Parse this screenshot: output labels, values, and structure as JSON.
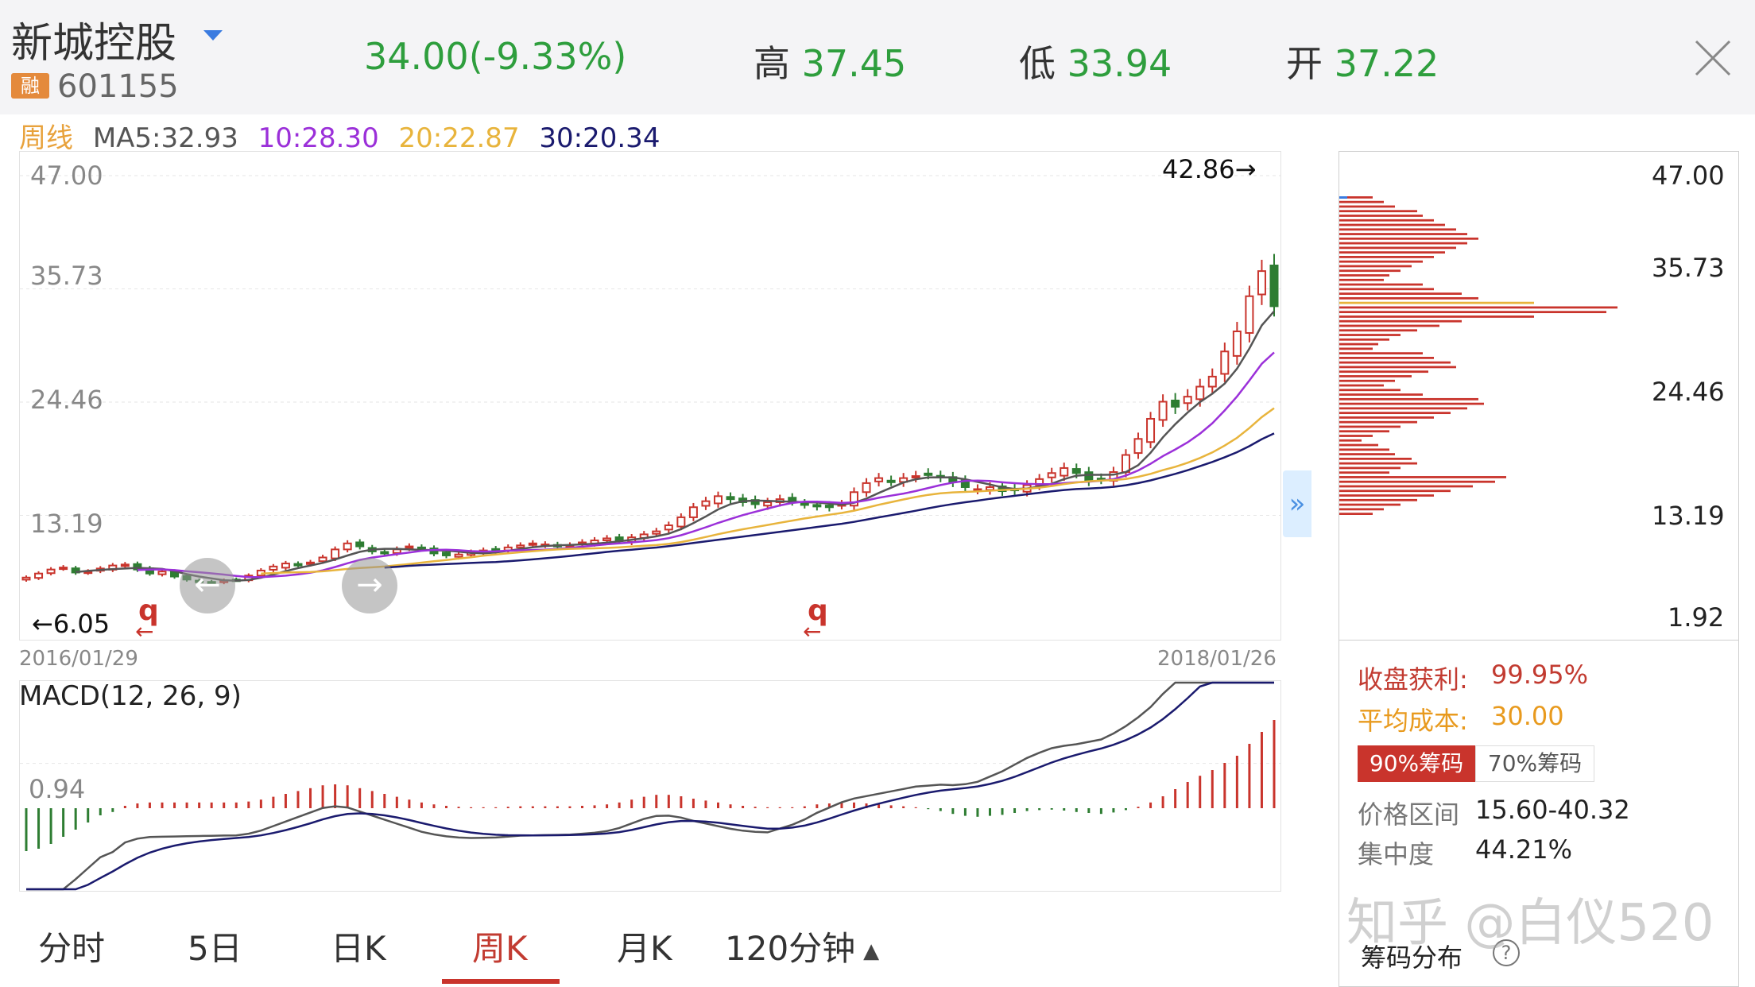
{
  "header": {
    "stock_name": "新城控股",
    "margin_badge": "融",
    "stock_code": "601155",
    "price": "34.00",
    "change_pct": "(-9.33%)",
    "high_label": "高",
    "high": "37.45",
    "low_label": "低",
    "low": "33.94",
    "open_label": "开",
    "open": "37.22"
  },
  "ma_bar": {
    "period": "周线",
    "ma5": "MA5:32.93",
    "ma10": "10:28.30",
    "ma20": "20:22.87",
    "ma30": "30:20.34"
  },
  "colors": {
    "up": "#c9342c",
    "down": "#2e7d32",
    "ma5": "#555555",
    "ma10": "#9b30d9",
    "ma20": "#e8b43c",
    "ma30": "#1a1a6e",
    "accent": "#c9342c"
  },
  "kline": {
    "y_ticks": [
      "47.00",
      "35.73",
      "24.46",
      "13.19"
    ],
    "max_marker": "42.86→",
    "min_marker": "←6.05",
    "start_date": "2016/01/29",
    "end_date": "2018/01/26",
    "q_marker": "q",
    "arrow_marker": "←"
  },
  "chart_data": {
    "type": "candlestick",
    "title": "周K",
    "ylim": [
      1.92,
      47.0
    ],
    "closes": [
      7.0,
      7.4,
      7.8,
      8.0,
      7.5,
      7.6,
      7.9,
      8.2,
      8.3,
      7.8,
      7.4,
      7.6,
      7.1,
      6.8,
      6.6,
      6.5,
      6.7,
      6.8,
      7.2,
      7.7,
      8.1,
      8.4,
      8.3,
      8.5,
      9.0,
      9.8,
      10.4,
      10.1,
      9.6,
      9.4,
      9.8,
      10.1,
      9.9,
      9.4,
      9.2,
      9.3,
      9.5,
      9.7,
      9.8,
      10.0,
      10.2,
      10.4,
      10.3,
      10.1,
      10.2,
      10.5,
      10.7,
      10.9,
      10.7,
      11.0,
      11.3,
      11.6,
      12.2,
      13.0,
      14.0,
      14.6,
      15.1,
      14.8,
      14.5,
      14.3,
      14.5,
      14.8,
      14.6,
      14.3,
      14.1,
      14.0,
      14.3,
      15.5,
      16.4,
      16.9,
      16.6,
      16.9,
      17.1,
      17.3,
      17.0,
      16.5,
      16.0,
      15.8,
      16.0,
      15.6,
      15.7,
      16.2,
      16.8,
      17.4,
      17.9,
      17.4,
      16.6,
      16.8,
      17.5,
      19.2,
      20.8,
      22.8,
      24.5,
      24.0,
      25.0,
      26.0,
      27.0,
      29.5,
      31.5,
      35.0,
      37.5,
      34.0
    ],
    "ma_legend": [
      "MA5:32.93",
      "10:28.30",
      "20:22.87",
      "30:20.34"
    ],
    "x_start": "2016/01/29",
    "x_end": "2018/01/26"
  },
  "macd": {
    "title": "MACD(12, 26, 9)",
    "y_tick": "0.94",
    "histogram": [
      -0.9,
      -0.85,
      -0.75,
      -0.6,
      -0.45,
      -0.3,
      -0.15,
      -0.08,
      0.05,
      0.1,
      0.12,
      0.12,
      0.12,
      0.12,
      0.12,
      0.12,
      0.12,
      0.12,
      0.14,
      0.18,
      0.24,
      0.3,
      0.36,
      0.42,
      0.48,
      0.5,
      0.48,
      0.42,
      0.36,
      0.3,
      0.24,
      0.18,
      0.12,
      0.08,
      0.05,
      0.03,
      0.02,
      0.02,
      0.02,
      0.03,
      0.04,
      0.04,
      0.04,
      0.04,
      0.04,
      0.05,
      0.06,
      0.08,
      0.12,
      0.18,
      0.24,
      0.28,
      0.28,
      0.25,
      0.2,
      0.16,
      0.12,
      0.08,
      0.05,
      0.03,
      0.02,
      0.02,
      0.02,
      0.04,
      0.08,
      0.1,
      0.12,
      0.12,
      0.1,
      0.08,
      0.06,
      0.04,
      0.02,
      -0.02,
      -0.06,
      -0.12,
      -0.16,
      -0.18,
      -0.16,
      -0.14,
      -0.1,
      -0.06,
      -0.04,
      -0.03,
      -0.05,
      -0.08,
      -0.1,
      -0.12,
      -0.09,
      -0.04,
      0.03,
      0.12,
      0.25,
      0.4,
      0.55,
      0.68,
      0.8,
      0.95,
      1.1,
      1.35,
      1.6,
      1.85
    ]
  },
  "chip": {
    "y_ticks": [
      "47.00",
      "35.73",
      "24.46",
      "13.19",
      "1.92"
    ],
    "profit_label": "收盘获利:",
    "profit": "99.95%",
    "avg_cost_label": "平均成本:",
    "avg_cost": "30.00",
    "tab_90": "90%筹码",
    "tab_70": "70%筹码",
    "range_label": "价格区间",
    "range": "15.60-40.32",
    "concentration_label": "集中度",
    "concentration": "44.21%",
    "footer": "筹码分布"
  },
  "period_tabs": [
    "分时",
    "5日",
    "日K",
    "周K",
    "月K",
    "120分钟"
  ],
  "watermark": "知乎 @白仪520"
}
